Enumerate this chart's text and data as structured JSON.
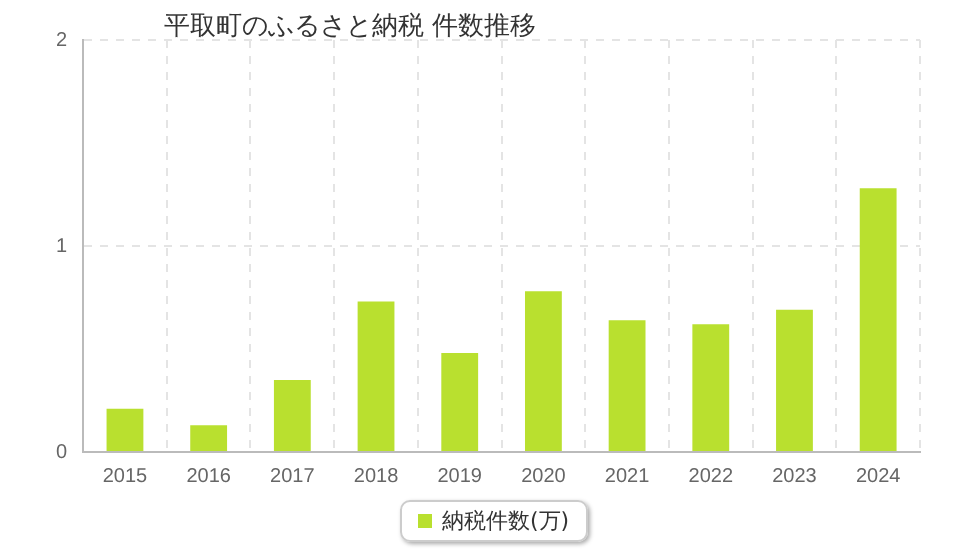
{
  "chart_data": {
    "type": "bar",
    "title": "平取町のふるさと納税 件数推移",
    "categories": [
      "2015",
      "2016",
      "2017",
      "2018",
      "2019",
      "2020",
      "2021",
      "2022",
      "2023",
      "2024"
    ],
    "series": [
      {
        "name": "納税件数(万)",
        "color": "#b9e02f",
        "values": [
          0.21,
          0.13,
          0.35,
          0.73,
          0.48,
          0.78,
          0.64,
          0.62,
          0.69,
          1.28
        ]
      }
    ],
    "ylim": [
      0,
      2
    ],
    "yticks": [
      0,
      1,
      2
    ],
    "grid": true,
    "legend": "bottom"
  }
}
